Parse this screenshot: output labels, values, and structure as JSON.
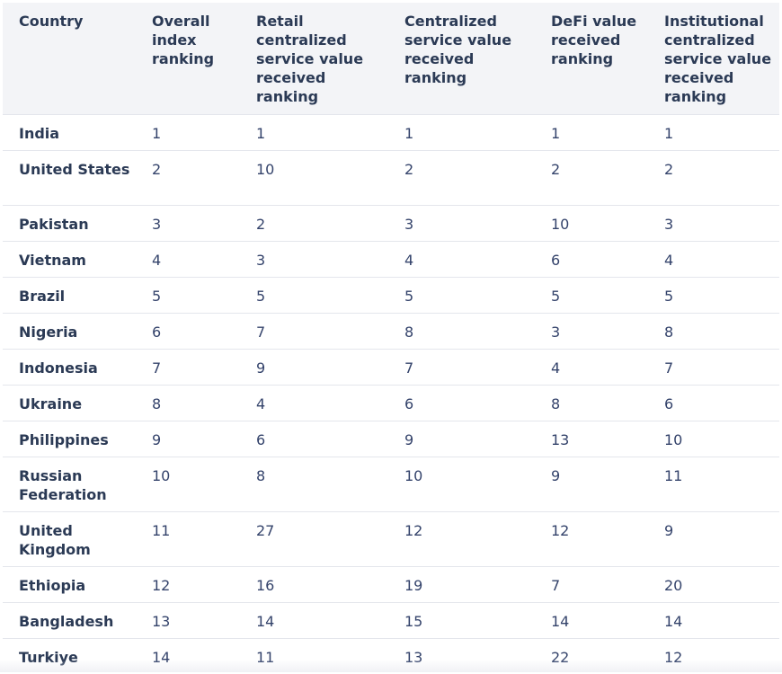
{
  "table": {
    "headers": [
      "Country",
      "Overall index ranking",
      "Retail centralized service value received ranking",
      "Centralized service value received ranking",
      "DeFi value received ranking",
      "Institutional centralized service value received ranking"
    ],
    "rows": [
      [
        "India",
        "1",
        "1",
        "1",
        "1",
        "1"
      ],
      [
        "United States",
        "2",
        "10",
        "2",
        "2",
        "2"
      ],
      [
        "Pakistan",
        "3",
        "2",
        "3",
        "10",
        "3"
      ],
      [
        "Vietnam",
        "4",
        "3",
        "4",
        "6",
        "4"
      ],
      [
        "Brazil",
        "5",
        "5",
        "5",
        "5",
        "5"
      ],
      [
        "Nigeria",
        "6",
        "7",
        "8",
        "3",
        "8"
      ],
      [
        "Indonesia",
        "7",
        "9",
        "7",
        "4",
        "7"
      ],
      [
        "Ukraine",
        "8",
        "4",
        "6",
        "8",
        "6"
      ],
      [
        "Philippines",
        "9",
        "6",
        "9",
        "13",
        "10"
      ],
      [
        "Russian Federation",
        "10",
        "8",
        "10",
        "9",
        "11"
      ],
      [
        "United Kingdom",
        "11",
        "27",
        "12",
        "12",
        "9"
      ],
      [
        "Ethiopia",
        "12",
        "16",
        "19",
        "7",
        "20"
      ],
      [
        "Bangladesh",
        "13",
        "14",
        "15",
        "14",
        "14"
      ],
      [
        "Turkiye",
        "14",
        "11",
        "13",
        "22",
        "12"
      ]
    ]
  }
}
